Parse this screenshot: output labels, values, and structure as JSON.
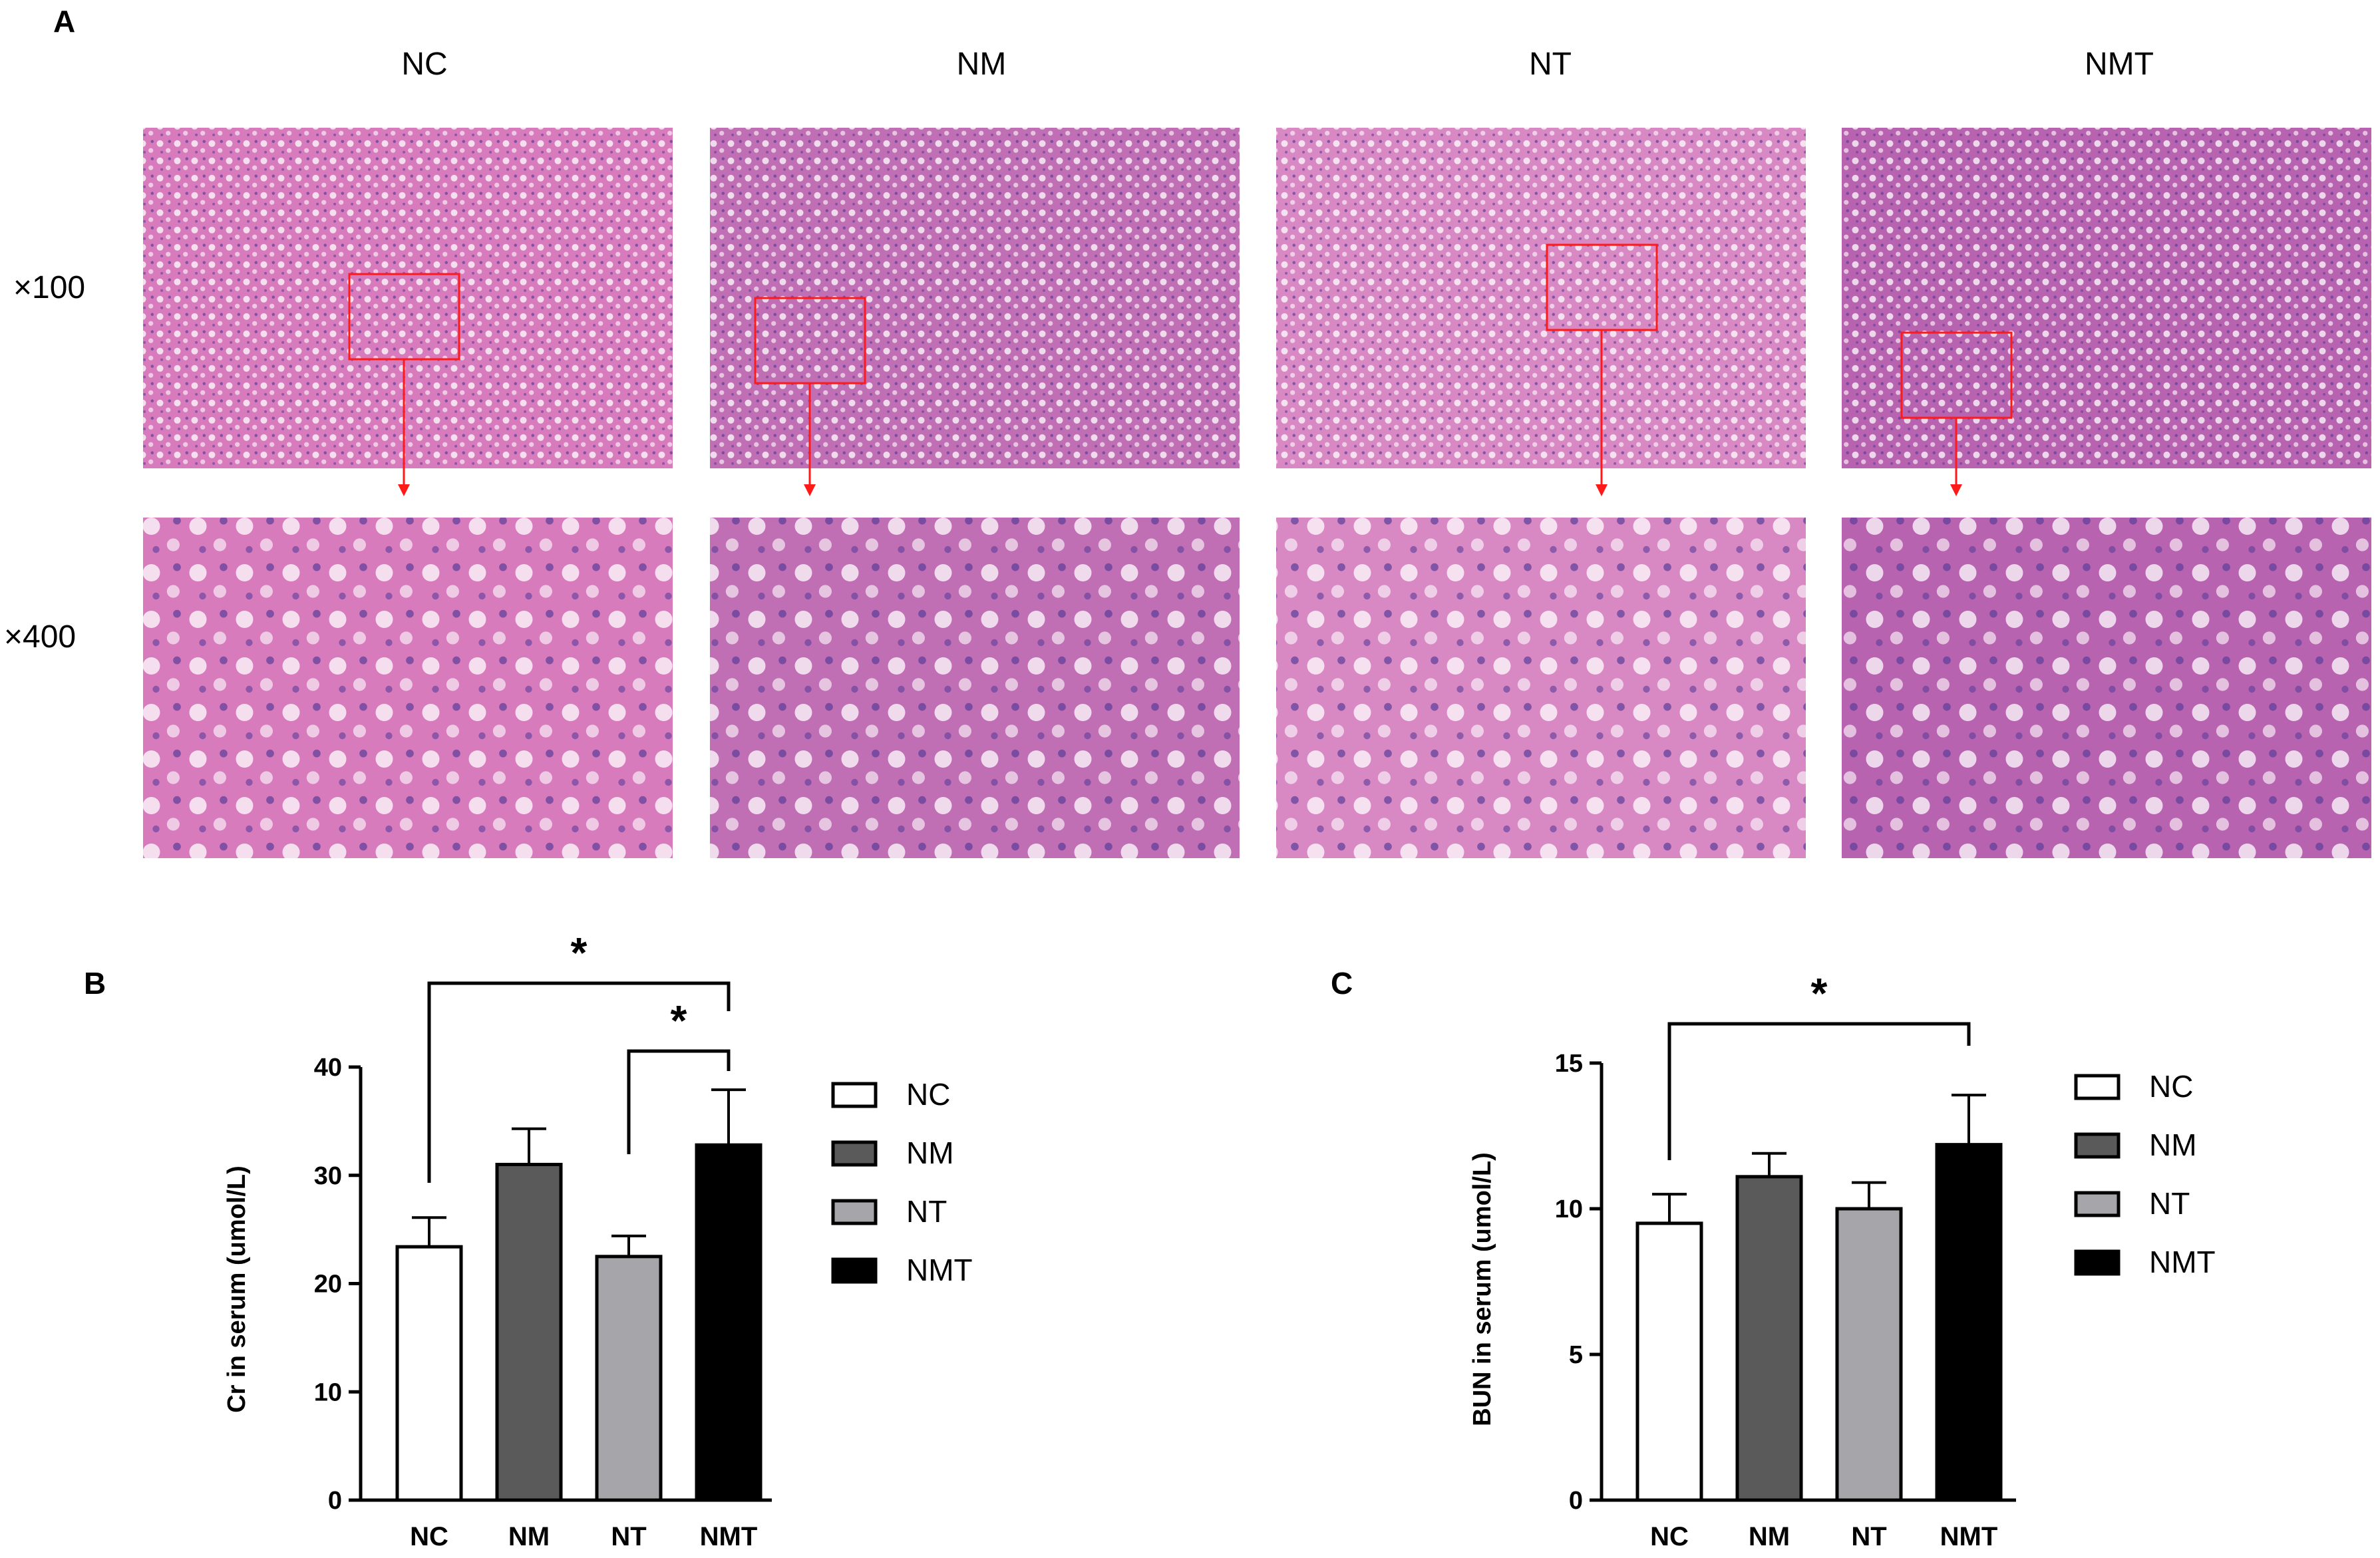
{
  "panel_a": {
    "letter": "A",
    "columns": [
      "NC",
      "NM",
      "NT",
      "NMT"
    ],
    "rows": [
      "×100",
      "×400"
    ],
    "micrographs": [
      {
        "group": "NC",
        "tone": "#d77bbd"
      },
      {
        "group": "NM",
        "tone": "#c06fb5"
      },
      {
        "group": "NT",
        "tone": "#d888c3"
      },
      {
        "group": "NMT",
        "tone": "#b863b0"
      }
    ]
  },
  "chart_data": [
    {
      "type": "bar",
      "panel": "B",
      "categories": [
        "NC",
        "NM",
        "NT",
        "NMT"
      ],
      "values": [
        23.4,
        31.0,
        22.5,
        32.8
      ],
      "errors": [
        2.7,
        3.3,
        1.9,
        5.1
      ],
      "ylabel": "Cr in serum (umol/L)",
      "ylim": [
        0,
        40
      ],
      "yticks": [
        0,
        10,
        20,
        30,
        40
      ],
      "bar_colors": [
        "#ffffff",
        "#5a5a5a",
        "#a6a6aa",
        "#000000"
      ],
      "legend": [
        "NC",
        "NM",
        "NT",
        "NMT"
      ],
      "legend_position": "right",
      "significance": [
        {
          "from": "NC",
          "to": "NMT",
          "label": "*"
        },
        {
          "from": "NT",
          "to": "NMT",
          "label": "*"
        }
      ]
    },
    {
      "type": "bar",
      "panel": "C",
      "categories": [
        "NC",
        "NM",
        "NT",
        "NMT"
      ],
      "values": [
        9.5,
        11.1,
        10.0,
        12.2
      ],
      "errors": [
        1.0,
        0.8,
        0.9,
        1.7
      ],
      "ylabel": "BUN in serum (umol/L)",
      "ylim": [
        0,
        15
      ],
      "yticks": [
        0,
        5,
        10,
        15
      ],
      "bar_colors": [
        "#ffffff",
        "#5a5a5a",
        "#a6a6aa",
        "#000000"
      ],
      "legend": [
        "NC",
        "NM",
        "NT",
        "NMT"
      ],
      "legend_position": "right",
      "significance": [
        {
          "from": "NC",
          "to": "NMT",
          "label": "*"
        }
      ]
    }
  ]
}
